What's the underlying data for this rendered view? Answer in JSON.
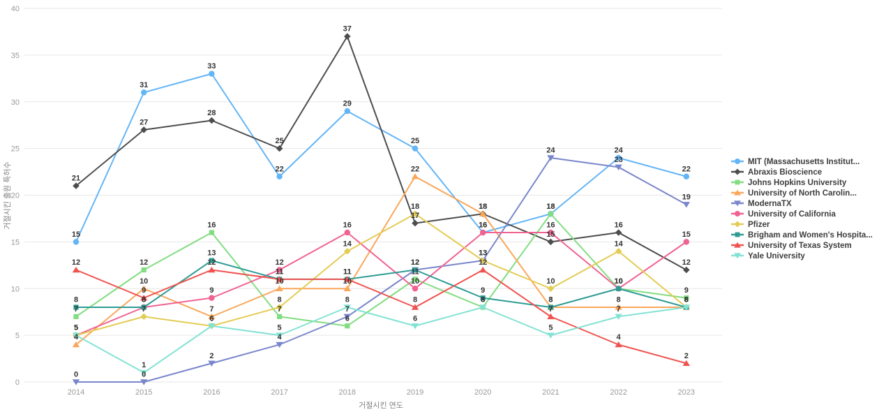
{
  "chart_data": {
    "type": "line",
    "x_years": [
      "2014",
      "2015",
      "2016",
      "2017",
      "2018",
      "2019",
      "2020",
      "2021",
      "2022",
      "2023"
    ],
    "xlabel": "거절시킨 연도",
    "ylabel": "거절시킨 출원 특허수",
    "ylim": [
      0,
      40
    ],
    "y_ticks": [
      0,
      5,
      10,
      15,
      20,
      25,
      30,
      35,
      40
    ],
    "grid": "horizontal",
    "legend_position": "right",
    "series": [
      {
        "label": "MIT (Massachusetts Institut...",
        "color": "#64b5f6",
        "marker": "circle",
        "values": [
          15,
          31,
          33,
          22,
          29,
          25,
          16,
          18,
          24,
          22
        ]
      },
      {
        "label": "Abraxis Bioscience",
        "color": "#4d4d4d",
        "marker": "diamond",
        "values": [
          21,
          27,
          28,
          25,
          37,
          17,
          18,
          15,
          16,
          12
        ]
      },
      {
        "label": "Johns Hopkins University",
        "color": "#82dd82",
        "marker": "square",
        "values": [
          7,
          12,
          16,
          7,
          6,
          11,
          8,
          18,
          10,
          9
        ]
      },
      {
        "label": "University of North Carolin...",
        "color": "#faa75b",
        "marker": "triangle",
        "values": [
          4,
          10,
          7,
          10,
          10,
          22,
          18,
          8,
          8,
          8
        ]
      },
      {
        "label": "ModernaTX",
        "color": "#7986cb",
        "marker": "triangle-down",
        "values": [
          0,
          0,
          2,
          4,
          7,
          12,
          13,
          24,
          23,
          19
        ]
      },
      {
        "label": "University of California",
        "color": "#f06292",
        "marker": "circle",
        "values": [
          5,
          8,
          9,
          12,
          16,
          10,
          16,
          16,
          10,
          15
        ]
      },
      {
        "label": "Pfizer",
        "color": "#e3cc55",
        "marker": "diamond",
        "values": [
          5,
          7,
          6,
          8,
          14,
          18,
          13,
          10,
          14,
          8
        ]
      },
      {
        "label": "Brigham and Women's Hospita...",
        "color": "#2d9c94",
        "marker": "square",
        "values": [
          8,
          8,
          13,
          11,
          11,
          12,
          9,
          8,
          10,
          8
        ]
      },
      {
        "label": "University of Texas System",
        "color": "#ef5350",
        "marker": "triangle",
        "values": [
          12,
          9,
          12,
          11,
          11,
          8,
          12,
          7,
          4,
          2
        ]
      },
      {
        "label": "Yale University",
        "color": "#84e2d4",
        "marker": "triangle-down",
        "values": [
          5,
          1,
          6,
          5,
          8,
          6,
          8,
          5,
          7,
          8
        ]
      }
    ]
  },
  "style": {
    "grid_color": "#e6e6e6",
    "tick_color": "#999999",
    "axis_title_color": "#808080",
    "point_label_color": "#333333",
    "legend_text_color": "#3d3d3d"
  }
}
